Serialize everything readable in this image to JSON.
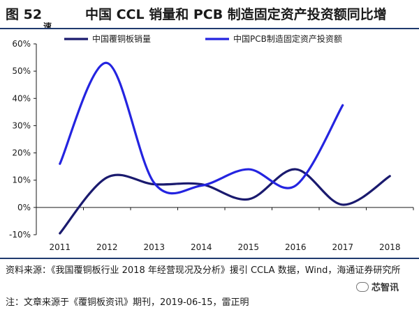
{
  "header": {
    "figure_number": "图 52",
    "title": "中国 CCL 销量和 PCB 制造固定资产投资额同比增",
    "title_wrap": "速"
  },
  "chart_data": {
    "type": "line",
    "x": [
      "2011",
      "2012",
      "2013",
      "2014",
      "2015",
      "2016",
      "2017",
      "2018"
    ],
    "y_ticks": [
      "60%",
      "50%",
      "40%",
      "30%",
      "20%",
      "10%",
      "0%",
      "-10%"
    ],
    "ylim": [
      -10,
      60
    ],
    "grid": false,
    "legend_placement": "top",
    "series": [
      {
        "name": "中国覆铜板销量",
        "color": "#1a1a6e",
        "values": [
          -9.5,
          11,
          8.5,
          8.5,
          3,
          14,
          1,
          11.5
        ]
      },
      {
        "name": "中国PCB制造固定资产投资额",
        "color": "#2424e0",
        "values": [
          16,
          53,
          9,
          8,
          14,
          8,
          37.5,
          null
        ]
      }
    ]
  },
  "source": {
    "text": "资料来源：《我国覆铜板行业 2018 年经营现况及分析》援引 CCLA 数据，Wind，海通证券研究所",
    "note": "注：文章来源于《覆铜板资讯》期刊，2019-06-15，雷正明",
    "watermark": "芯智讯"
  }
}
